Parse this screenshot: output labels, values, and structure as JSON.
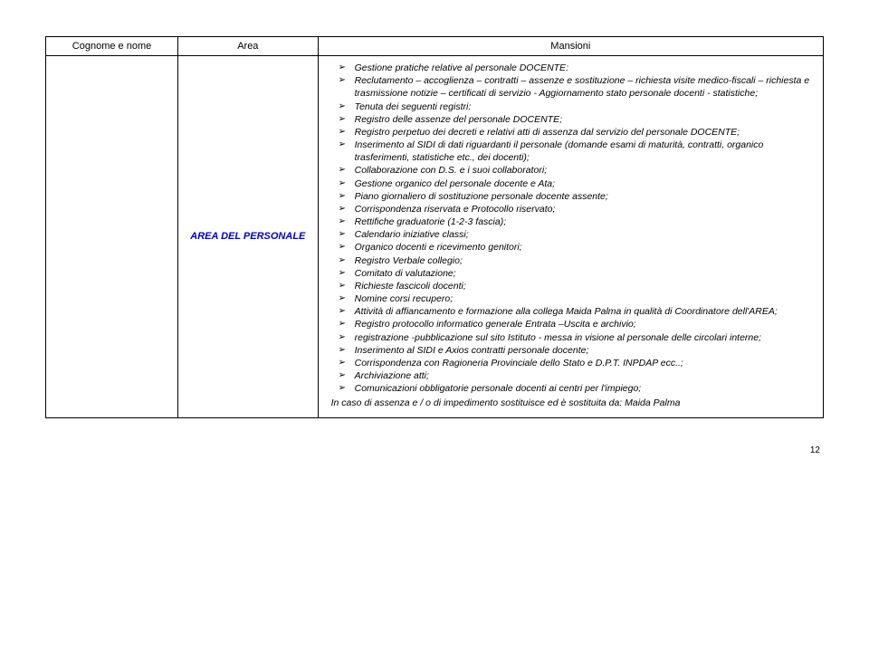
{
  "table": {
    "headers": {
      "col1": "Cognome e nome",
      "col2": "Area",
      "col3": "Mansioni"
    },
    "row": {
      "cognome": "",
      "area": "AREA DEL PERSONALE",
      "bullets": [
        "Gestione pratiche relative al personale DOCENTE:",
        "Reclutamento – accoglienza – contratti – assenze e sostituzione – richiesta visite medico-fiscali – richiesta e trasmissione notizie – certificati di servizio - Aggiornamento stato personale docenti -  statistiche;",
        "Tenuta dei seguenti registri:",
        "Registro delle assenze del personale DOCENTE;",
        "Registro perpetuo dei decreti e relativi atti di assenza dal servizio del personale DOCENTE;",
        "Inserimento al SIDI di  dati riguardanti il personale (domande esami di maturità, contratti, organico  trasferimenti, statistiche etc.,  dei docenti);",
        "Collaborazione con D.S. e i suoi collaboratori;",
        "Gestione organico del personale docente e Ata;",
        "Piano giornaliero di sostituzione personale docente assente;",
        "Corrispondenza riservata e  Protocollo riservato;",
        "Rettifiche graduatorie (1-2-3 fascia);",
        "Calendario iniziative classi;",
        "Organico docenti e ricevimento genitori;",
        "Registro Verbale collegio;",
        "Comitato di valutazione;",
        "Richieste fascicoli docenti;",
        "Nomine corsi recupero;",
        "Attività di  affiancamento e formazione alla collega Maida Palma in qualità di  Coordinatore dell'AREA;",
        "Registro protocollo informatico generale Entrata –Uscita e archivio;",
        "registrazione -pubblicazione sul sito Istituto - messa in visione al personale delle circolari interne;",
        "Inserimento al SIDI e Axios contratti personale docente;",
        "Corrispondenza con Ragioneria Provinciale dello Stato e D.P.T. INPDAP ecc..;",
        "Archiviazione atti;",
        "Comunicazioni obbligatorie personale docenti ai centri per l'impiego;"
      ],
      "closing": "In caso di assenza e / o di impedimento sostituisce ed è sostituita da: Maida Palma"
    }
  },
  "page_number": "12",
  "colors": {
    "border": "#000000",
    "text": "#000000",
    "area_text": "#0000cc",
    "background": "#ffffff"
  }
}
